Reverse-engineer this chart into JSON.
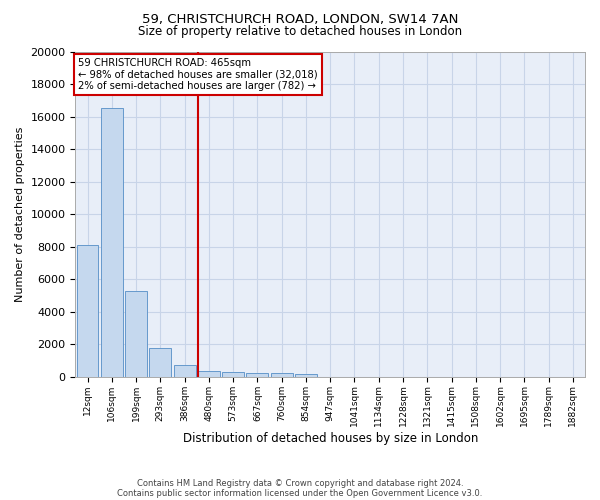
{
  "title1": "59, CHRISTCHURCH ROAD, LONDON, SW14 7AN",
  "title2": "Size of property relative to detached houses in London",
  "xlabel": "Distribution of detached houses by size in London",
  "ylabel": "Number of detached properties",
  "annotation_title": "59 CHRISTCHURCH ROAD: 465sqm",
  "annotation_line1": "← 98% of detached houses are smaller (32,018)",
  "annotation_line2": "2% of semi-detached houses are larger (782) →",
  "footer1": "Contains HM Land Registry data © Crown copyright and database right 2024.",
  "footer2": "Contains public sector information licensed under the Open Government Licence v3.0.",
  "bar_color": "#c5d8ee",
  "bar_edge_color": "#6699cc",
  "grid_color": "#c8d4e8",
  "background_color": "#e8eef8",
  "vline_color": "#cc0000",
  "box_color": "#cc0000",
  "categories": [
    "12sqm",
    "106sqm",
    "199sqm",
    "293sqm",
    "386sqm",
    "480sqm",
    "573sqm",
    "667sqm",
    "760sqm",
    "854sqm",
    "947sqm",
    "1041sqm",
    "1134sqm",
    "1228sqm",
    "1321sqm",
    "1415sqm",
    "1508sqm",
    "1602sqm",
    "1695sqm",
    "1789sqm",
    "1882sqm"
  ],
  "values": [
    8100,
    16500,
    5300,
    1750,
    700,
    350,
    280,
    235,
    205,
    175,
    0,
    0,
    0,
    0,
    0,
    0,
    0,
    0,
    0,
    0,
    0
  ],
  "vline_position": 4.55,
  "ylim": [
    0,
    20000
  ],
  "yticks": [
    0,
    2000,
    4000,
    6000,
    8000,
    10000,
    12000,
    14000,
    16000,
    18000,
    20000
  ]
}
